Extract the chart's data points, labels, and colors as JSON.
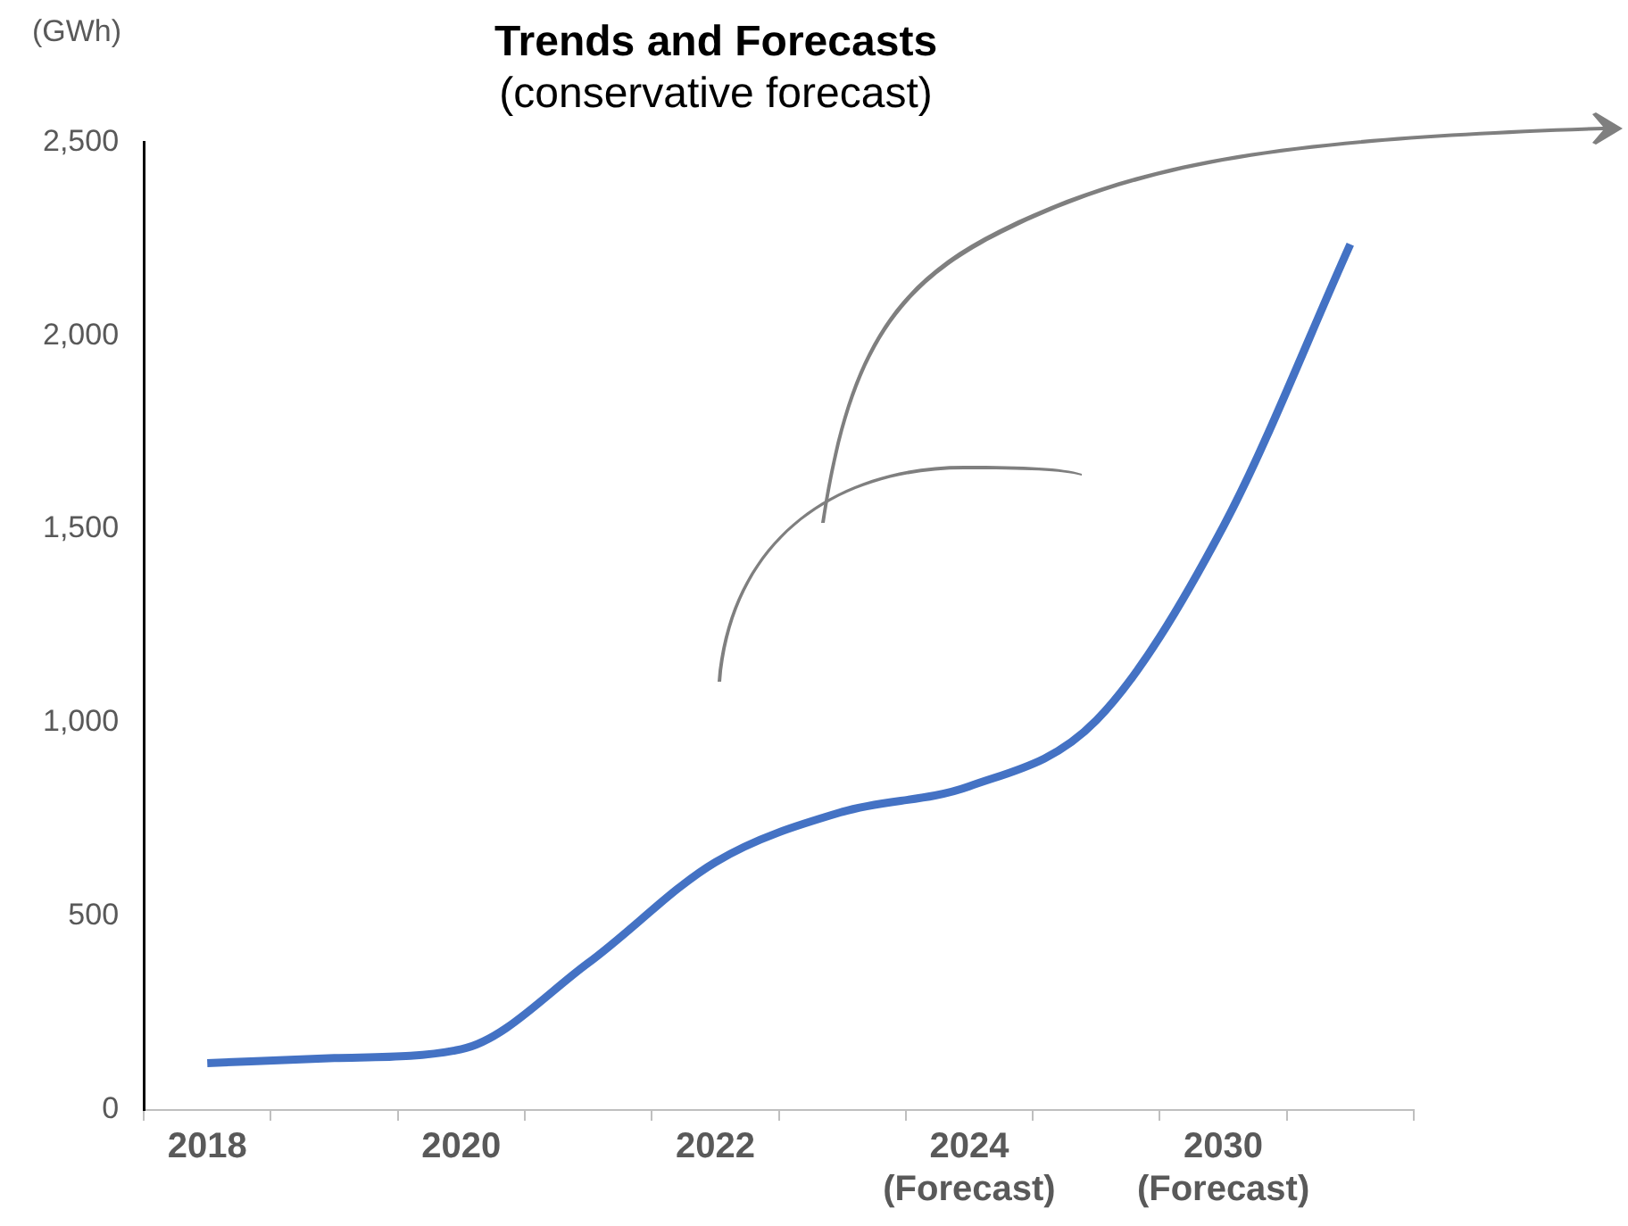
{
  "chart_data": {
    "type": "line",
    "title": "Trends and Forecasts",
    "subtitle": "(conservative forecast)",
    "ylabel": "(GWh)",
    "categories": [
      "2018",
      null,
      "2020",
      null,
      "2022",
      null,
      "2024\n(Forecast)",
      null,
      "2030\n(Forecast)",
      null
    ],
    "series": [
      {
        "color": "#4472c4",
        "values": [
          121,
          134,
          157,
          380,
          640,
          770,
          836,
          1006,
          1507,
          2236
        ]
      }
    ],
    "ylim": [
      0,
      2500
    ],
    "yticks": [
      0,
      500,
      {
        "value": 1000,
        "label": "1,000"
      },
      {
        "value": 1500,
        "label": "1,500"
      },
      {
        "value": 2000,
        "label": "2,000"
      },
      {
        "value": 2500,
        "label": "2,500"
      }
    ],
    "grid": false,
    "legend": false,
    "marker": "none",
    "line_style": "solid"
  }
}
